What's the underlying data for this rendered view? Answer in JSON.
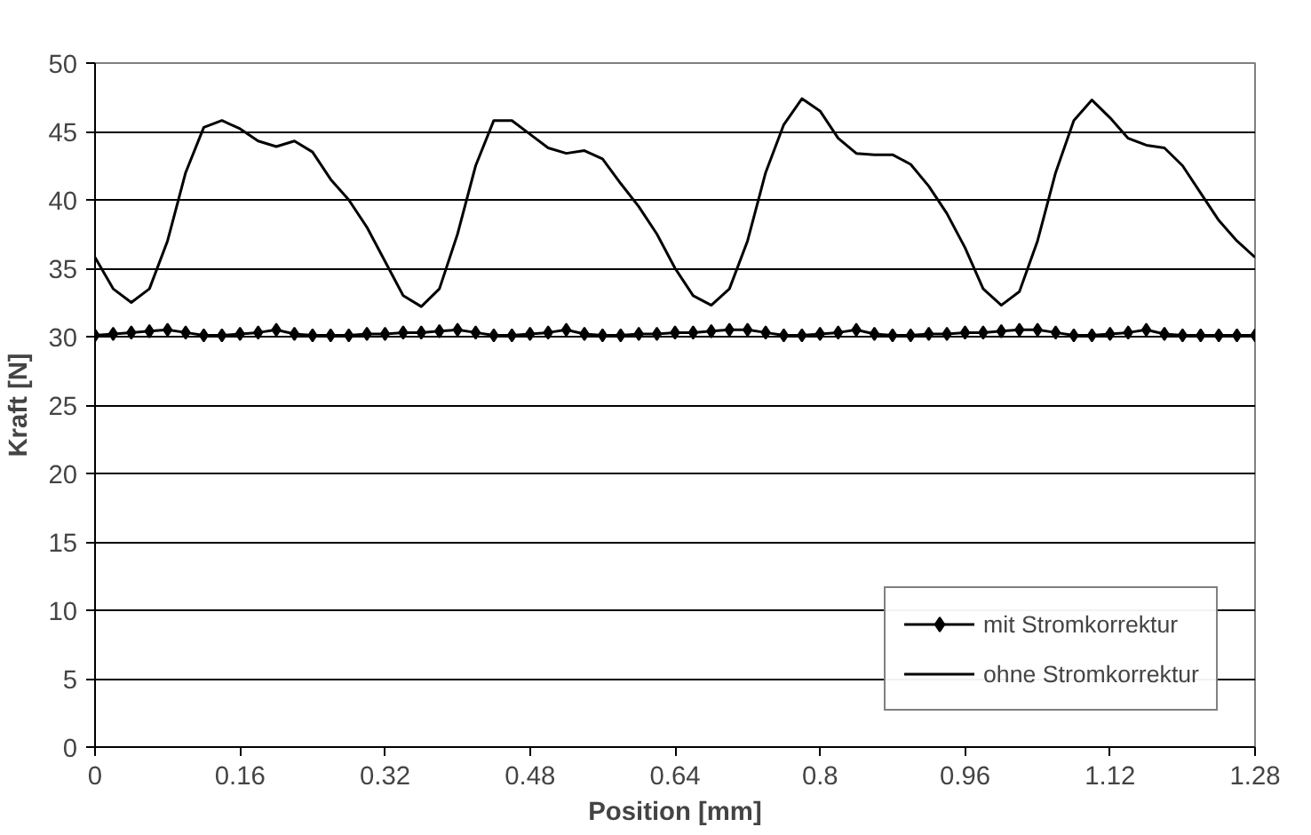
{
  "chart_data": {
    "type": "line",
    "xlabel": "Position [mm]",
    "ylabel": "Kraft [N]",
    "xlim": [
      0,
      1.28
    ],
    "xticks": [
      0,
      0.16,
      0.32,
      0.48,
      0.64,
      0.8,
      0.96,
      1.12,
      1.28
    ],
    "ylim": [
      0,
      50
    ],
    "yticks": [
      0,
      5,
      10,
      15,
      20,
      25,
      30,
      35,
      40,
      45,
      50
    ],
    "grid": "y",
    "legend": "bottom right",
    "x": [
      0,
      0.02,
      0.04,
      0.06,
      0.08,
      0.1,
      0.12,
      0.14,
      0.16,
      0.18,
      0.2,
      0.22,
      0.24,
      0.26,
      0.28,
      0.3,
      0.32,
      0.34,
      0.36,
      0.38,
      0.4,
      0.42,
      0.44,
      0.46,
      0.48,
      0.5,
      0.52,
      0.54,
      0.56,
      0.58,
      0.6,
      0.62,
      0.64,
      0.66,
      0.68,
      0.7,
      0.72,
      0.74,
      0.76,
      0.78,
      0.8,
      0.82,
      0.84,
      0.86,
      0.88,
      0.9,
      0.92,
      0.94,
      0.96,
      0.98,
      1.0,
      1.02,
      1.04,
      1.06,
      1.08,
      1.1,
      1.12,
      1.14,
      1.16,
      1.18,
      1.2,
      1.22,
      1.24,
      1.26,
      1.28
    ],
    "series": [
      {
        "name": "mit Stromkorrektur",
        "color": "#000000",
        "marker": "diamond",
        "values": [
          30.1,
          30.2,
          30.3,
          30.4,
          30.5,
          30.3,
          30.1,
          30.1,
          30.2,
          30.3,
          30.5,
          30.2,
          30.1,
          30.1,
          30.1,
          30.2,
          30.2,
          30.3,
          30.3,
          30.4,
          30.5,
          30.3,
          30.1,
          30.1,
          30.2,
          30.3,
          30.5,
          30.2,
          30.1,
          30.1,
          30.2,
          30.2,
          30.3,
          30.3,
          30.4,
          30.5,
          30.5,
          30.3,
          30.1,
          30.1,
          30.2,
          30.3,
          30.5,
          30.2,
          30.1,
          30.1,
          30.2,
          30.2,
          30.3,
          30.3,
          30.4,
          30.5,
          30.5,
          30.3,
          30.1,
          30.1,
          30.2,
          30.3,
          30.5,
          30.2,
          30.1,
          30.1,
          30.1,
          30.1,
          30.1
        ]
      },
      {
        "name": "ohne Stromkorrektur",
        "color": "#000000",
        "marker": "none",
        "values": [
          35.8,
          33.5,
          32.5,
          33.5,
          37,
          42,
          45.3,
          45.8,
          45.2,
          44.3,
          43.9,
          44.3,
          43.5,
          41.5,
          40,
          38,
          35.5,
          33,
          32.2,
          33.5,
          37.5,
          42.5,
          45.8,
          45.8,
          44.8,
          43.8,
          43.4,
          43.6,
          43,
          41.2,
          39.5,
          37.5,
          35,
          33,
          32.3,
          33.5,
          37,
          42,
          45.5,
          47.4,
          46.5,
          44.5,
          43.4,
          43.3,
          43.3,
          42.6,
          41,
          39,
          36.5,
          33.5,
          32.3,
          33.3,
          37,
          42,
          45.8,
          47.3,
          46,
          44.5,
          44,
          43.8,
          42.5,
          40.5,
          38.5,
          37,
          35.8
        ]
      }
    ]
  }
}
